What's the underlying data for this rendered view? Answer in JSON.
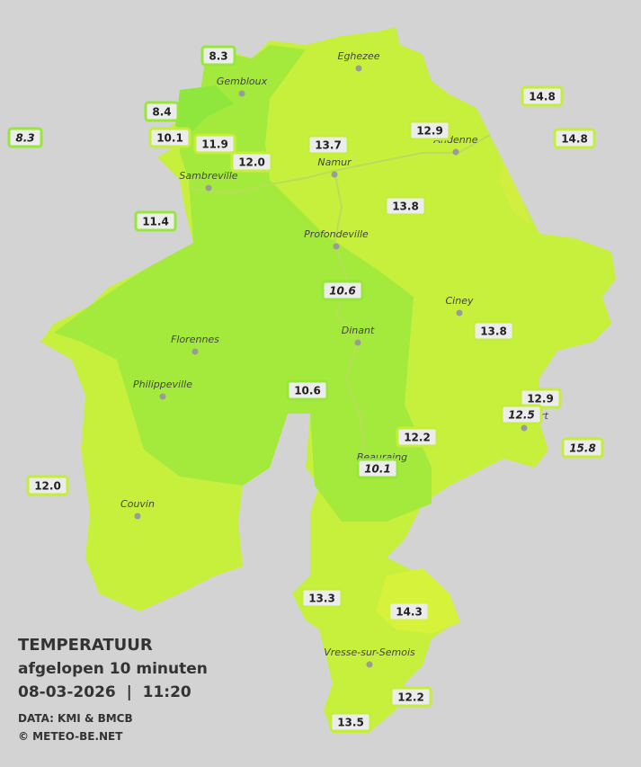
{
  "legend": {
    "title": "TEMPERATUUR",
    "subtitle": "afgelopen 10 minuten",
    "datetime": "08-03-2026  |  11:20",
    "source": "DATA: KMI & BMCB",
    "copyright": "© METEO-BE.NET"
  },
  "cities": [
    {
      "name": "Eghezee"
    },
    {
      "name": "Gembloux"
    },
    {
      "name": "Andenne"
    },
    {
      "name": "Namur"
    },
    {
      "name": "Sambreville"
    },
    {
      "name": "Profondeville"
    },
    {
      "name": "Ciney"
    },
    {
      "name": "Dinant"
    },
    {
      "name": "Florennes"
    },
    {
      "name": "Philippeville"
    },
    {
      "name": "Rochefort"
    },
    {
      "name": "Beauraing"
    },
    {
      "name": "Couvin"
    },
    {
      "name": "Vresse-sur-Semois"
    }
  ],
  "stations": [
    {
      "value": "8.3"
    },
    {
      "value": "8.4"
    },
    {
      "value": "8.3"
    },
    {
      "value": "10.1"
    },
    {
      "value": "11.9"
    },
    {
      "value": "12.0"
    },
    {
      "value": "11.4"
    },
    {
      "value": "13.7"
    },
    {
      "value": "12.9"
    },
    {
      "value": "14.8"
    },
    {
      "value": "14.8"
    },
    {
      "value": "13.8"
    },
    {
      "value": "10.6"
    },
    {
      "value": "13.8"
    },
    {
      "value": "10.6"
    },
    {
      "value": "12.9"
    },
    {
      "value": "12.5"
    },
    {
      "value": "12.2"
    },
    {
      "value": "15.8"
    },
    {
      "value": "10.1"
    },
    {
      "value": "12.0"
    },
    {
      "value": "13.3"
    },
    {
      "value": "14.3"
    },
    {
      "value": "12.2"
    },
    {
      "value": "13.5"
    }
  ]
}
